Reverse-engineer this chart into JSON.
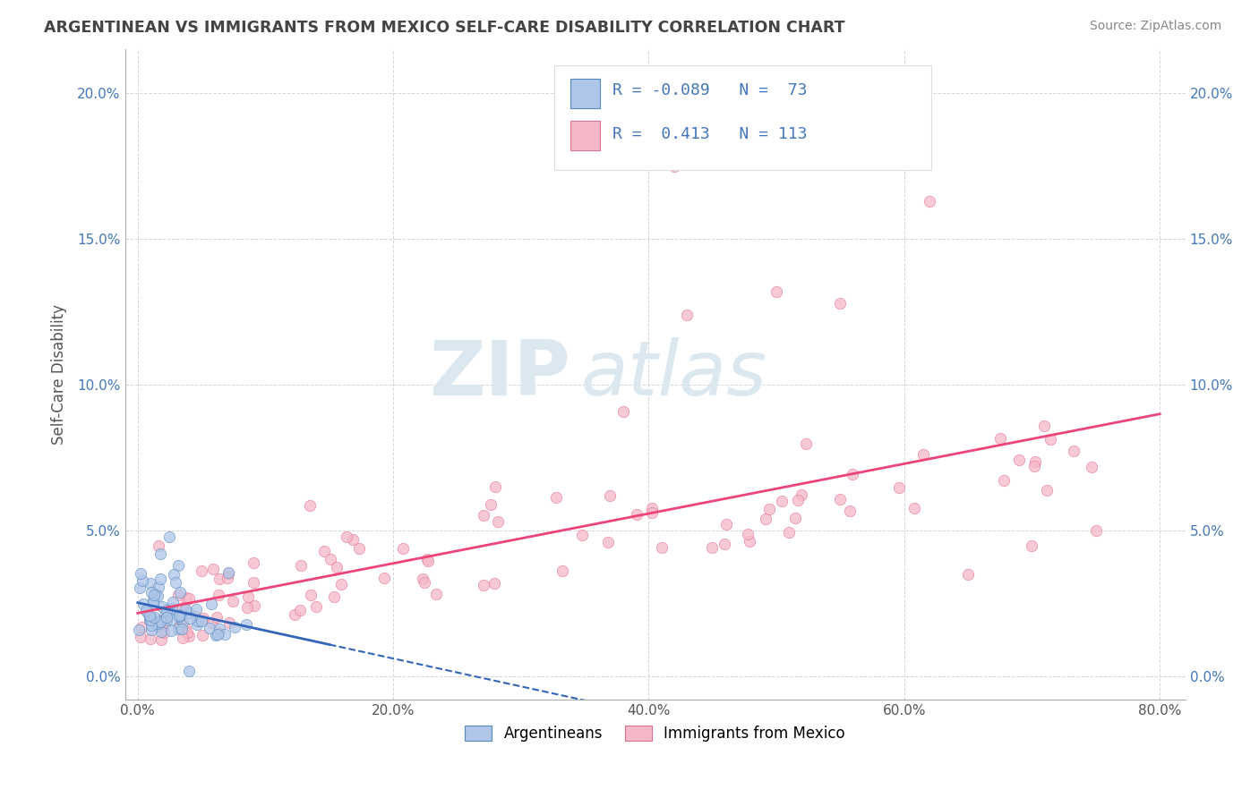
{
  "title": "ARGENTINEAN VS IMMIGRANTS FROM MEXICO SELF-CARE DISABILITY CORRELATION CHART",
  "source": "Source: ZipAtlas.com",
  "xlabel_ticks": [
    "0.0%",
    "20.0%",
    "40.0%",
    "60.0%",
    "80.0%"
  ],
  "xlabel_vals": [
    0.0,
    0.2,
    0.4,
    0.6,
    0.8
  ],
  "ylabel": "Self-Care Disability",
  "ylabel_ticks": [
    "0.0%",
    "5.0%",
    "10.0%",
    "15.0%",
    "20.0%"
  ],
  "ylabel_vals": [
    0.0,
    0.05,
    0.1,
    0.15,
    0.2
  ],
  "argentinean_color": "#aec6e8",
  "mexico_color": "#f5b8c8",
  "argentinean_edge": "#5588bb",
  "mexico_edge": "#e07090",
  "trend_blue": "#3366bb",
  "trend_pink": "#ee4477",
  "R_argentinean": -0.089,
  "N_argentinean": 73,
  "R_mexico": 0.413,
  "N_mexico": 113,
  "legend_label_1": "Argentineans",
  "legend_label_2": "Immigrants from Mexico",
  "watermark_zip": "ZIP",
  "watermark_atlas": "atlas",
  "background_color": "#ffffff",
  "grid_color": "#cccccc",
  "title_color": "#444444",
  "axis_label_color": "#4477bb",
  "xlim": [
    -0.01,
    0.82
  ],
  "ylim": [
    -0.008,
    0.215
  ]
}
